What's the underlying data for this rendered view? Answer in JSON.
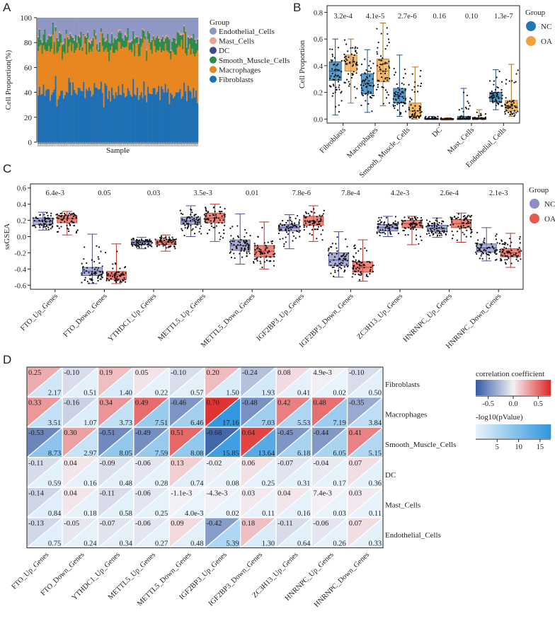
{
  "panel_labels": {
    "a": "A",
    "b": "B",
    "c": "C",
    "d": "D"
  },
  "colors": {
    "nc_blue": "#1f77b4",
    "oa_orange": "#f0a13c",
    "nc_purple": "#8c8fc9",
    "oa_red": "#e8584a",
    "endothelial": "#8f98c4",
    "mast": "#f0a08c",
    "dc": "#3d4a8c",
    "smooth": "#2e8b4a",
    "macro": "#e8861f",
    "fibro": "#1f6fb4"
  },
  "chart_data": [
    {
      "type": "bar",
      "subtype": "stacked_100",
      "title": "",
      "xlabel": "Sample",
      "ylabel": "Cell Proportion(%)",
      "ylim": [
        0,
        100
      ],
      "yticks": [
        "0",
        "20",
        "40",
        "60",
        "80",
        "100"
      ],
      "n_samples": 120,
      "legend_title": "Group",
      "series": [
        {
          "name": "Endothelial_Cells",
          "color": "#8f98c4",
          "mean": 15
        },
        {
          "name": "Mast_Cells",
          "color": "#f0a08c",
          "mean": 1
        },
        {
          "name": "DC",
          "color": "#3d4a8c",
          "mean": 0.5
        },
        {
          "name": "Smooth_Muscle_Cells",
          "color": "#2e8b4a",
          "mean": 8
        },
        {
          "name": "Macrophages",
          "color": "#e8861f",
          "mean": 35
        },
        {
          "name": "Fibroblasts",
          "color": "#1f6fb4",
          "mean": 40
        }
      ]
    },
    {
      "type": "box",
      "xlabel": "",
      "ylabel": "Cell Proportion",
      "ylim": [
        -0.03,
        0.85
      ],
      "yticks": [
        "0.0",
        "0.2",
        "0.4",
        "0.6",
        "0.8"
      ],
      "legend_title": "Group",
      "groups": [
        "NC",
        "OA"
      ],
      "categories": [
        "Fibroblasts",
        "Macrophages",
        "Smooth_Muscle_Cells",
        "DC",
        "Mast_Cells",
        "Endothelial_Cells"
      ],
      "pvalues": [
        "3.2e-4",
        "4.1e-5",
        "2.7e-6",
        "0.16",
        "0.10",
        "1.3e-7"
      ],
      "boxes": {
        "NC": [
          [
            0.03,
            0.29,
            0.36,
            0.43,
            0.6
          ],
          [
            0.05,
            0.19,
            0.27,
            0.34,
            0.52
          ],
          [
            0.02,
            0.12,
            0.17,
            0.23,
            0.48
          ],
          [
            0.0,
            0.0,
            0.0,
            0.005,
            0.02
          ],
          [
            0.0,
            0.0,
            0.005,
            0.02,
            0.23
          ],
          [
            0.07,
            0.13,
            0.16,
            0.2,
            0.37
          ]
        ],
        "OA": [
          [
            0.12,
            0.36,
            0.42,
            0.48,
            0.6
          ],
          [
            0.1,
            0.28,
            0.36,
            0.45,
            0.72
          ],
          [
            0.0,
            0.02,
            0.06,
            0.12,
            0.39
          ],
          [
            0.0,
            0.0,
            0.0,
            0.0,
            0.01
          ],
          [
            0.0,
            0.0,
            0.0,
            0.01,
            0.07
          ],
          [
            0.02,
            0.06,
            0.1,
            0.14,
            0.41
          ]
        ]
      }
    },
    {
      "type": "box",
      "xlabel": "",
      "ylabel": "ssGSEA",
      "ylim": [
        -0.65,
        0.65
      ],
      "yticks": [
        "-0.6",
        "-0.4",
        "-0.2",
        "0.0",
        "0.2",
        "0.4",
        "0.6"
      ],
      "legend_title": "Group",
      "groups": [
        "NC",
        "OA"
      ],
      "categories": [
        "FTO_Up_Genes",
        "FTO_Down_Genes",
        "YTHDC1_Up_Genes",
        "METTL5_Up_Genes",
        "METTL5_Down_Genes",
        "IGF2BP3_Up_Genes",
        "IGF2BP3_Down_Genes",
        "ZC3H13_Up_Genes",
        "HNRNPC_Up_Genes",
        "HNRNPC_Down_Genes"
      ],
      "pvalues": [
        "6.4e-3",
        "0.05",
        "0.03",
        "3.5e-3",
        "0.01",
        "7.8e-6",
        "7.8e-4",
        "4.2e-3",
        "2.6e-4",
        "2.1e-3"
      ],
      "boxes": {
        "NC": [
          [
            0.08,
            0.15,
            0.19,
            0.23,
            0.3
          ],
          [
            -0.58,
            -0.48,
            -0.43,
            -0.38,
            0.03
          ],
          [
            -0.15,
            -0.1,
            -0.07,
            -0.05,
            -0.01
          ],
          [
            0.0,
            0.15,
            0.19,
            0.24,
            0.38
          ],
          [
            -0.34,
            -0.17,
            -0.11,
            -0.04,
            0.28
          ],
          [
            -0.15,
            0.07,
            0.11,
            0.15,
            0.27
          ],
          [
            -0.5,
            -0.36,
            -0.29,
            -0.2,
            0.06
          ],
          [
            0.0,
            0.07,
            0.11,
            0.15,
            0.25
          ],
          [
            -0.01,
            0.06,
            0.1,
            0.14,
            0.23
          ],
          [
            -0.3,
            -0.19,
            -0.14,
            -0.09,
            0.11
          ]
        ],
        "OA": [
          [
            0.02,
            0.17,
            0.22,
            0.26,
            0.31
          ],
          [
            -0.58,
            -0.53,
            -0.47,
            -0.43,
            -0.09
          ],
          [
            -0.18,
            -0.1,
            -0.07,
            -0.04,
            0.02
          ],
          [
            -0.06,
            0.17,
            0.23,
            0.29,
            0.4
          ],
          [
            -0.4,
            -0.25,
            -0.18,
            -0.11,
            0.18
          ],
          [
            -0.06,
            0.14,
            0.19,
            0.25,
            0.38
          ],
          [
            -0.55,
            -0.44,
            -0.38,
            -0.31,
            -0.04
          ],
          [
            -0.1,
            0.11,
            0.16,
            0.2,
            0.25
          ],
          [
            -0.07,
            0.11,
            0.16,
            0.21,
            0.29
          ],
          [
            -0.38,
            -0.25,
            -0.2,
            -0.15,
            0.04
          ]
        ]
      }
    },
    {
      "type": "heatmap",
      "subtype": "triangle_correlation",
      "columns": [
        "FTO_Up_Genes",
        "FTO_Down_Genes",
        "YTHDC1_Up_Genes",
        "METTL5_Up_Genes",
        "METTL5_Down_Genes",
        "IGF2BP3_Up_Genes",
        "IGF2BP3_Down_Genes",
        "ZC3H13_Up_Genes",
        "HNRNPC_Up_Genes",
        "HNRNPC_Down_Genes"
      ],
      "rows": [
        "Fibroblasts",
        "Macrophages",
        "Smooth_Muscle_Cells",
        "DC",
        "Mast_Cells",
        "Endothelial_Cells"
      ],
      "correlation_legend": {
        "title": "correlation coefficient",
        "ticks": [
          "-0.5",
          "0.0",
          "0.5"
        ],
        "range": [
          -0.75,
          0.75
        ]
      },
      "pvalue_legend": {
        "title": "-log10(pValue)",
        "ticks": [
          "5",
          "10",
          "15"
        ],
        "range": [
          0,
          17.5
        ]
      },
      "correlation": [
        [
          0.25,
          -0.1,
          0.19,
          0.05,
          -0.1,
          0.2,
          -0.24,
          0.08,
          0.0049,
          -0.1
        ],
        [
          0.33,
          -0.16,
          0.34,
          0.49,
          -0.46,
          0.7,
          -0.48,
          0.42,
          0.48,
          -0.35
        ],
        [
          -0.53,
          0.3,
          -0.51,
          -0.49,
          0.51,
          -0.68,
          0.64,
          -0.45,
          -0.44,
          0.41
        ],
        [
          -0.11,
          0.04,
          -0.09,
          -0.06,
          0.13,
          -0.02,
          0.06,
          -0.07,
          -0.04,
          0.07
        ],
        [
          -0.14,
          0.04,
          -0.11,
          -0.06,
          -0.0011,
          -0.0043,
          0.03,
          0.04,
          0.0074,
          0.03
        ],
        [
          -0.13,
          -0.05,
          -0.07,
          -0.06,
          0.09,
          -0.42,
          0.18,
          -0.11,
          -0.06,
          0.07
        ]
      ],
      "correlation_labels": [
        [
          "0.25",
          "-0.10",
          "0.19",
          "0.05",
          "-0.10",
          "0.20",
          "-0.24",
          "0.08",
          "4.9e-3",
          "-0.10"
        ],
        [
          "0.33",
          "-0.16",
          "0.34",
          "0.49",
          "-0.46",
          "0.70",
          "-0.48",
          "0.42",
          "0.48",
          "-0.35"
        ],
        [
          "-0.53",
          "0.30",
          "-0.51",
          "-0.49",
          "0.51",
          "-0.68",
          "0.64",
          "-0.45",
          "-0.44",
          "0.41"
        ],
        [
          "-0.11",
          "0.04",
          "-0.09",
          "-0.06",
          "0.13",
          "-0.02",
          "0.06",
          "-0.07",
          "-0.04",
          "0.07"
        ],
        [
          "-0.14",
          "0.04",
          "-0.11",
          "-0.06",
          "-1.1e-3",
          "-4.3e-3",
          "0.03",
          "0.04",
          "7.4e-3",
          "0.03"
        ],
        [
          "-0.13",
          "-0.05",
          "-0.07",
          "-0.06",
          "0.09",
          "-0.42",
          "0.18",
          "-0.11",
          "-0.06",
          "0.07"
        ]
      ],
      "neglog10p": [
        [
          2.17,
          0.51,
          1.4,
          0.22,
          0.57,
          1.5,
          1.93,
          0.41,
          0.02,
          0.5
        ],
        [
          3.51,
          1.07,
          3.73,
          7.51,
          6.46,
          17.16,
          7.03,
          5.53,
          7.19,
          3.84
        ],
        [
          8.73,
          2.97,
          8.05,
          7.59,
          8.08,
          15.85,
          13.64,
          6.18,
          6.05,
          5.15
        ],
        [
          0.59,
          0.16,
          0.48,
          0.28,
          0.74,
          0.08,
          0.25,
          0.31,
          0.17,
          0.36
        ],
        [
          0.84,
          0.18,
          0.58,
          0.25,
          0.004,
          0.02,
          0.11,
          0.16,
          0.03,
          0.11
        ],
        [
          0.75,
          0.24,
          0.34,
          0.27,
          0.48,
          5.39,
          1.3,
          0.64,
          0.26,
          0.33
        ]
      ],
      "pvalue_labels": [
        [
          "2.17",
          "0.51",
          "1.40",
          "0.22",
          "0.57",
          "1.50",
          "1.93",
          "0.41",
          "0.02",
          "0.50"
        ],
        [
          "3.51",
          "1.07",
          "3.73",
          "7.51",
          "6.46",
          "17.16",
          "7.03",
          "5.53",
          "7.19",
          "3.84"
        ],
        [
          "8.73",
          "2.97",
          "8.05",
          "7.59",
          "8.08",
          "15.85",
          "13.64",
          "6.18",
          "6.05",
          "5.15"
        ],
        [
          "0.59",
          "0.16",
          "0.48",
          "0.28",
          "0.74",
          "0.08",
          "0.25",
          "0.31",
          "0.17",
          "0.36"
        ],
        [
          "0.84",
          "0.18",
          "0.58",
          "0.25",
          "4.0e-3",
          "0.02",
          "0.11",
          "0.16",
          "0.03",
          "0.11"
        ],
        [
          "0.75",
          "0.24",
          "0.34",
          "0.27",
          "0.48",
          "5.39",
          "1.30",
          "0.64",
          "0.26",
          "0.33"
        ]
      ]
    }
  ]
}
